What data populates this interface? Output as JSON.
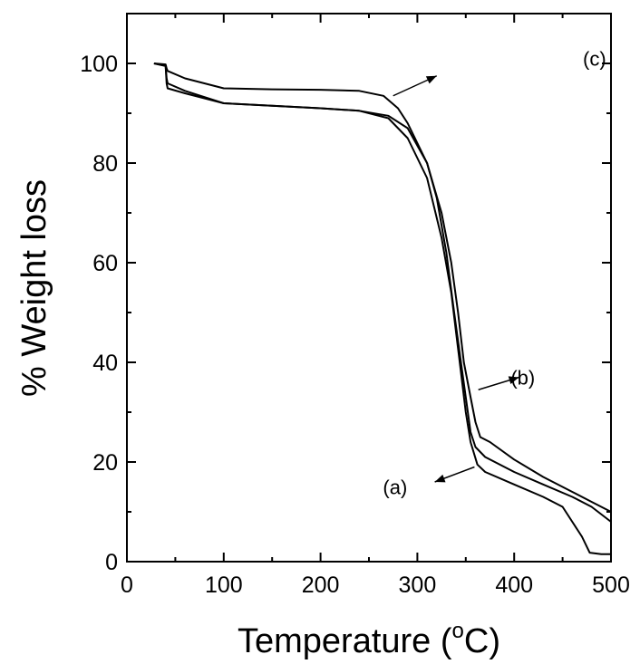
{
  "chart_data": {
    "type": "line",
    "xlabel": "Temperature (",
    "xlabel_sup": "o",
    "xlabel_tail": "C)",
    "ylabel": "% Weight loss",
    "xlim": [
      0,
      500
    ],
    "ylim": [
      0,
      110
    ],
    "xticks": [
      0,
      100,
      200,
      300,
      400,
      500
    ],
    "yticks": [
      0,
      20,
      40,
      60,
      80,
      100
    ],
    "grid": false,
    "series": [
      {
        "name": "(a)",
        "x": [
          28,
          40,
          41,
          42,
          60,
          100,
          150,
          200,
          240,
          270,
          290,
          310,
          325,
          335,
          340,
          345,
          350,
          355,
          362,
          370,
          400,
          430,
          450,
          460,
          470,
          478,
          490,
          500
        ],
        "y": [
          100,
          99.5,
          96,
          95,
          94,
          92,
          91.5,
          91,
          90.5,
          89,
          85,
          77,
          65,
          54,
          46,
          38,
          30,
          24,
          19.5,
          18,
          15.5,
          13,
          11,
          8,
          5,
          1.8,
          1.5,
          1.5
        ]
      },
      {
        "name": "(b)",
        "x": [
          28,
          40,
          41,
          42,
          60,
          100,
          150,
          200,
          240,
          270,
          290,
          310,
          325,
          335,
          342,
          348,
          355,
          360,
          365,
          375,
          400,
          430,
          460,
          480,
          500
        ],
        "y": [
          100,
          99.5,
          97,
          96,
          94.5,
          92,
          91.5,
          91,
          90.5,
          89.5,
          87,
          80,
          70,
          60,
          50,
          40,
          33,
          28,
          25,
          24,
          20.5,
          17,
          14,
          12,
          10
        ]
      },
      {
        "name": "(c)",
        "x": [
          28,
          40,
          41,
          42,
          60,
          100,
          150,
          200,
          240,
          265,
          280,
          290,
          300,
          310,
          320,
          330,
          338,
          345,
          350,
          355,
          360,
          370,
          400,
          430,
          460,
          480,
          500
        ],
        "y": [
          100,
          99.8,
          99,
          98.5,
          97,
          95,
          94.8,
          94.7,
          94.5,
          93.5,
          91,
          88,
          84,
          80,
          73,
          62,
          50,
          40,
          33,
          26,
          23,
          21,
          18,
          15.5,
          13,
          11,
          8
        ]
      }
    ],
    "annotations": [
      {
        "text": "(c)",
        "label_x": 483,
        "label_y": 101,
        "arrow_from": [
          275,
          93.5
        ],
        "arrow_to": [
          320,
          97.5
        ]
      },
      {
        "text": "(b)",
        "label_x": 409,
        "label_y": 37,
        "arrow_from": [
          363,
          34.5
        ],
        "arrow_to": [
          405,
          37
        ]
      },
      {
        "text": "(a)",
        "label_x": 277,
        "label_y": 15,
        "arrow_from": [
          359,
          19
        ],
        "arrow_to": [
          318,
          16
        ]
      }
    ]
  }
}
